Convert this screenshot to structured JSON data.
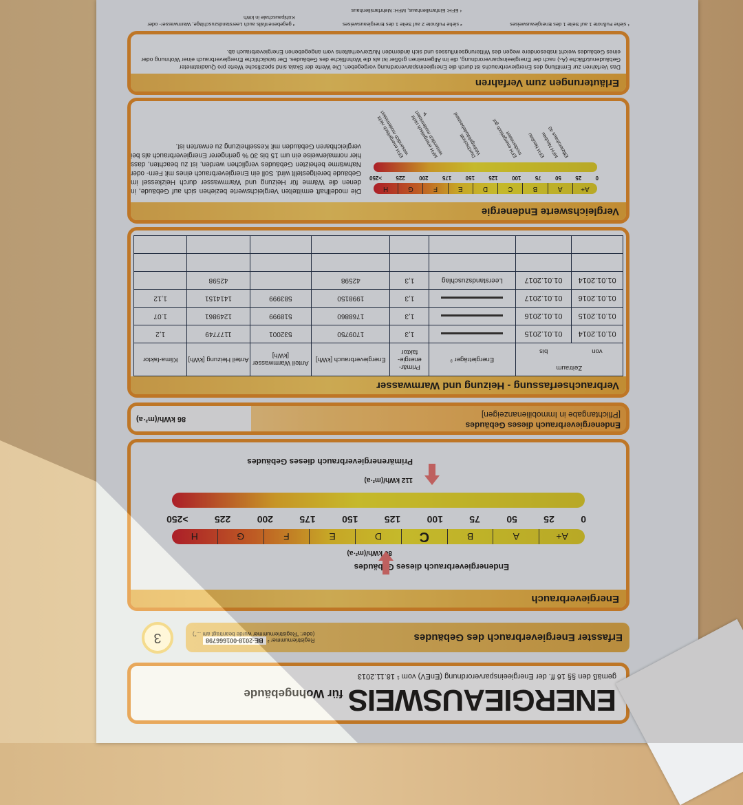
{
  "header": {
    "title": "ENERGIEAUSWEIS",
    "subtitle": "für Wohngebäude",
    "legal": "gemäß den §§ 16 ff. der Energieeinsparverordnung (EnEV) vom ¹  18.11.2013"
  },
  "section_bar": {
    "title": "Erfasster Energieverbrauch des Gebäudes",
    "reg_label": "Registriernummer ²",
    "reg_number": "BE-2018-001666798",
    "reg_note": "(oder: \"Registriernummer wurde beantragt am ...\")",
    "page_number": "3"
  },
  "energieverbrauch": {
    "title": "Energieverbrauch",
    "end_label": "Endenergieverbrauch dieses Gebäudes",
    "end_value": "86 kWh/(m²·a)",
    "primary_label": "Primärenergieverbrauch dieses Gebäudes",
    "primary_value": "112 kWh/(m²·a)",
    "end_value_num": 86,
    "primary_value_num": 112,
    "current_class": "C",
    "classes": [
      "A+",
      "A",
      "B",
      "C",
      "D",
      "E",
      "F",
      "G",
      "H"
    ],
    "ticks": [
      "0",
      "25",
      "50",
      "75",
      "100",
      "125",
      "150",
      "175",
      "200",
      "225",
      ">250"
    ]
  },
  "pflicht": {
    "title": "Endenergieverbrauch dieses Gebäudes",
    "subtitle": "[Pflichtangabe in Immobilienanzeigen]",
    "value": "86",
    "unit": "kWh/(m²·a)"
  },
  "verbrauch": {
    "title": "Verbrauchserfassung - Heizung und Warmwasser",
    "headers": {
      "zeitraum": "Zeitraum",
      "von": "von",
      "bis": "bis",
      "traeger": "Energieträger ³",
      "primaer": "Primär-energie-faktor",
      "verbrauch": "Energieverbrauch [kWh]",
      "warmwasser": "Anteil Warmwasser [kWh]",
      "heizung": "Anteil Heizung [kWh]",
      "klima": "Klima-faktor"
    },
    "rows": [
      {
        "von": "01.01.2014",
        "bis": "01.01.2015",
        "traeger": "",
        "primaer": "1,3",
        "verbrauch": "1709750",
        "warmwasser": "532001",
        "heizung": "1177749",
        "klima": "1,2"
      },
      {
        "von": "01.01.2015",
        "bis": "01.01.2016",
        "traeger": "",
        "primaer": "1,3",
        "verbrauch": "1768860",
        "warmwasser": "518999",
        "heizung": "1249861",
        "klima": "1.07"
      },
      {
        "von": "01.01.2016",
        "bis": "01.01.2017",
        "traeger": "",
        "primaer": "1,3",
        "verbrauch": "1998150",
        "warmwasser": "583999",
        "heizung": "1414151",
        "klima": "1,12"
      },
      {
        "von": "01.01.2014",
        "bis": "01.01.2017",
        "traeger": "Leerstandszuschlag",
        "primaer": "1,3",
        "verbrauch": "42598",
        "warmwasser": "",
        "heizung": "42598",
        "klima": ""
      },
      {
        "von": "",
        "bis": "",
        "traeger": "",
        "primaer": "",
        "verbrauch": "",
        "warmwasser": "",
        "heizung": "",
        "klima": ""
      },
      {
        "von": "",
        "bis": "",
        "traeger": "",
        "primaer": "",
        "verbrauch": "",
        "warmwasser": "",
        "heizung": "",
        "klima": ""
      }
    ]
  },
  "vergleich": {
    "title": "Vergleichswerte Endenergie",
    "classes": [
      "A+",
      "A",
      "B",
      "C",
      "D",
      "E",
      "F",
      "G",
      "H"
    ],
    "ticks": [
      "0",
      "25",
      "50",
      "75",
      "100",
      "125",
      "150",
      "175",
      "200",
      "225",
      ">250"
    ],
    "labels": [
      "Effizienzhaus 40",
      "MFH Neubau",
      "EFH Neubau",
      "EFH energetisch gut modernisiert",
      "Durchschnitt Wohngebäudebestand",
      "MFH energetisch nicht wesentlich modernisiert",
      "EFH energetisch nicht wesentlich modernisiert"
    ],
    "footmark": "4",
    "text": "Die modellhaft ermittelten Vergleichswerte beziehen sich auf Gebäude, in denen die Wärme für Heizung und Warmwasser durch Heizkessel im Gebäude bereitgestellt wird. Soll ein Energieverbrauch eines mit Fern- oder Nahwärme beheizten Gebäudes verglichen werden, ist zu beachten, dass hier normalerweise ein um 15 bis 30 % geringerer Energieverbrauch als bei vergleichbaren Gebäuden mit Kesselheizung zu erwarten ist."
  },
  "erlaeuterung": {
    "title": "Erläuterungen zum Verfahren",
    "text": "Das Verfahren zur Ermittlung des Energieverbrauchs ist durch die Energieeinsparverordnung vorgegeben. Die Werte der Skala sind spezifische Werte pro Quadratmeter Gebäudenutzfläche (Aₙ) nach der Energieeinsparverordnung, die im Allgemeinen größer ist als die Wohnfläche des Gebäudes. Der tatsächliche Energieverbrauch einer Wohnung oder eines Gebäudes weicht insbesondere wegen des Witterungseinflusses und sich ändernden Nutzerverhaltens vom angegebenen Energieverbrauch ab."
  },
  "footnotes": {
    "f1": "¹ siehe Fußnote 1 auf Seite 1 des Energieausweises",
    "f2": "² siehe Fußnote 2 auf Seite 1 des Energieausweises",
    "f3": "³ gegebenenfalls auch Leerstandszuschläge, Warmwasser- oder Kühlpauschale in kWh",
    "f4": "⁴ EFH: Einfamilienhaus, MFH: Mehrfamilienhaus"
  }
}
